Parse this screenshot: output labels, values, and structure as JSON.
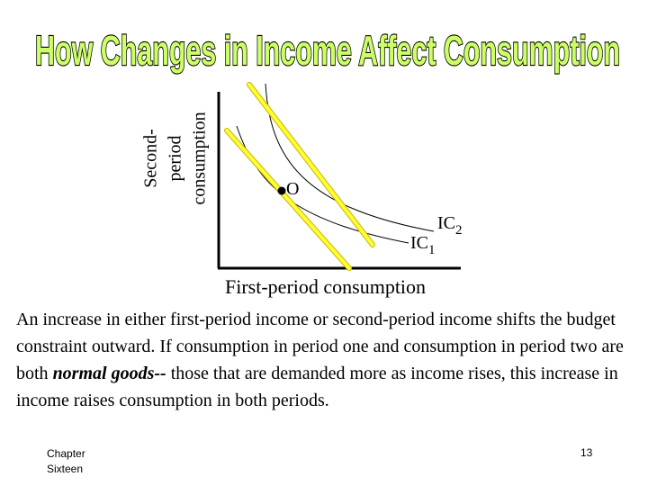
{
  "slide": {
    "title": "How Changes in Income Affect Consumption",
    "y_axis_label_lines": [
      "Second-",
      "period",
      "consumption"
    ],
    "x_axis_label": "First-period consumption",
    "point_label": "O",
    "curve_labels": {
      "ic2_base": "IC",
      "ic2_sub": "2",
      "ic1_base": "IC",
      "ic1_sub": "1"
    },
    "caption": {
      "before": "An increase in either first-period income or second-period income shifts the budget constraint outward. If consumption in period one and consumption in period two are both ",
      "emphasis": "normal goods--",
      "after": " those that are demanded more as income rises, this increase in income raises consumption in both periods."
    },
    "footer": {
      "chapter_label": "Chapter Sixteen",
      "page_number": "13"
    }
  },
  "colors": {
    "title_fill": "#ccff66",
    "title_outline": "#000000",
    "budget_line": "#ffff33",
    "budget_line_outline": "#c8b400"
  },
  "icons": {
    "point": "dot-marker"
  }
}
